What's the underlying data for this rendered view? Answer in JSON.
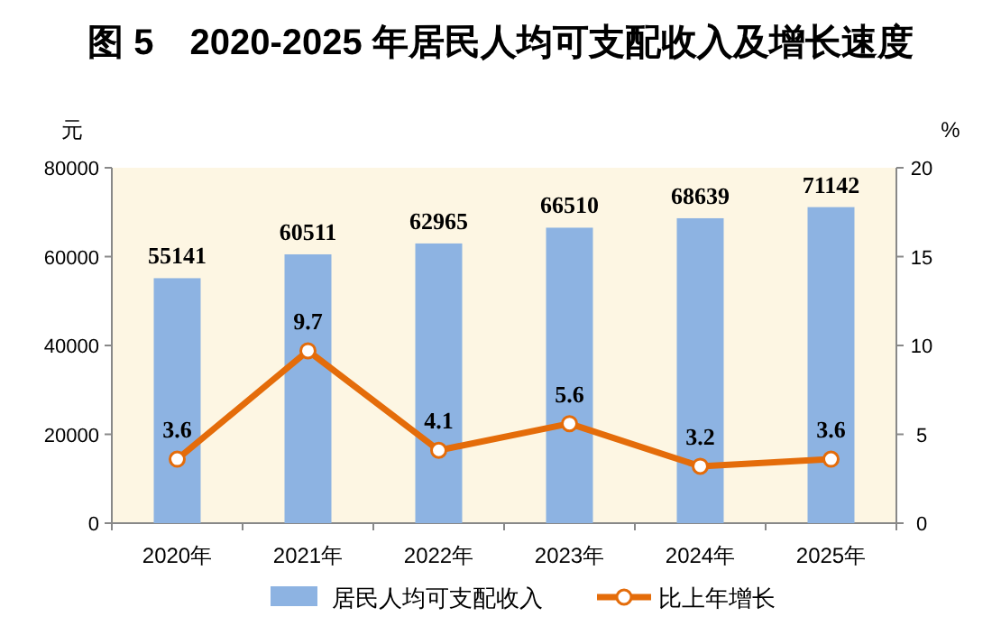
{
  "chart_data": {
    "type": "bar",
    "title": "图 5　2020-2025 年居民人均可支配收入及增长速度",
    "ylabel": "元",
    "y2label": "%",
    "categories": [
      "2020年",
      "2021年",
      "2022年",
      "2023年",
      "2024年",
      "2025年"
    ],
    "series": [
      {
        "name": "居民人均可支配收入",
        "color": "#8db3e2",
        "values": [
          55141,
          60511,
          62965,
          66510,
          68639,
          71142
        ]
      },
      {
        "name": "比上年增长",
        "type": "line",
        "axis": "y2",
        "color": "#e46c0a",
        "values": [
          3.6,
          9.7,
          4.1,
          5.6,
          3.2,
          3.6
        ]
      }
    ],
    "ylim": [
      0,
      80000
    ],
    "yticks": [
      0,
      20000,
      40000,
      60000,
      80000
    ],
    "y2lim": [
      0,
      20
    ],
    "y2ticks": [
      0,
      5,
      10,
      15,
      20
    ],
    "data_labels": true,
    "legend": "bottom",
    "marker": "circle",
    "line_style": "solid",
    "grid": false
  }
}
